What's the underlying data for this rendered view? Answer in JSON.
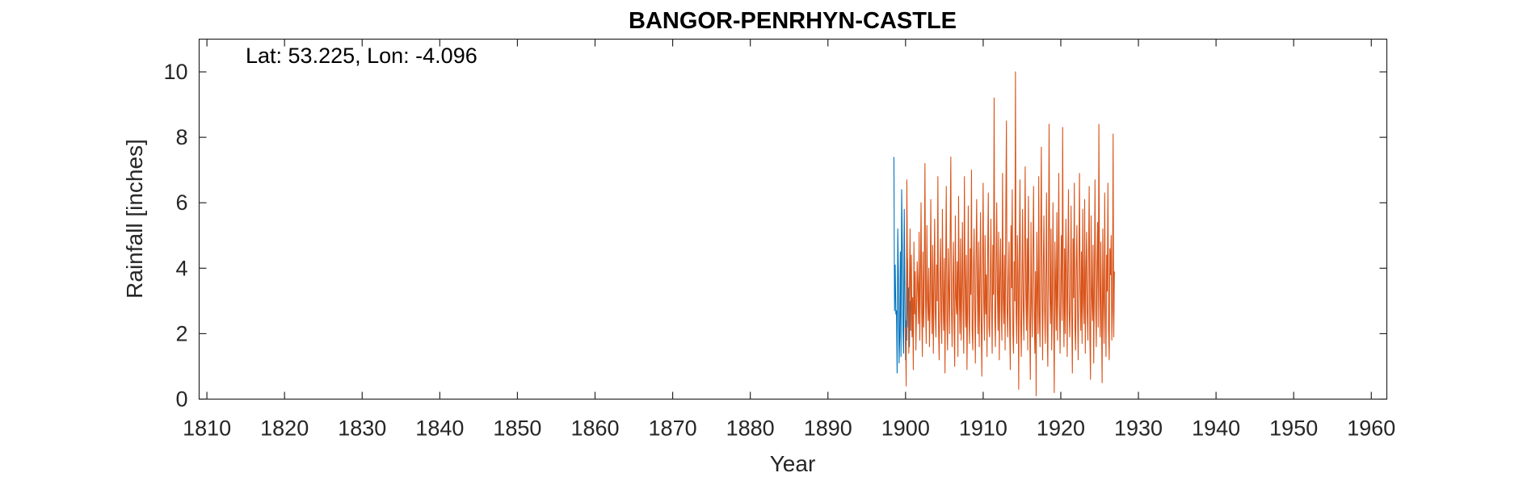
{
  "chart_data": {
    "type": "line",
    "title": "BANGOR-PENRHYN-CASTLE",
    "annotation": "Lat: 53.225, Lon: -4.096",
    "xlabel": "Year",
    "ylabel": "Rainfall [inches]",
    "xlim": [
      1809,
      1962
    ],
    "ylim": [
      0,
      11
    ],
    "xticks": [
      1810,
      1820,
      1830,
      1840,
      1850,
      1860,
      1870,
      1880,
      1890,
      1900,
      1910,
      1920,
      1930,
      1940,
      1950,
      1960
    ],
    "yticks": [
      0,
      2,
      4,
      6,
      8,
      10
    ],
    "grid": false,
    "legend": "none",
    "series": [
      {
        "color": "#0072BD",
        "x_start": 1898.5,
        "x_step": 0.0833,
        "values": [
          7.4,
          2.7,
          4.1,
          2.6,
          2.7,
          0.8,
          5.2,
          3.8,
          1.1,
          1.9,
          4.5,
          1.3,
          6.4,
          4.7,
          2.1,
          1.4,
          5.8,
          3.2,
          1.2,
          2.4,
          1.8,
          4.3,
          2.2,
          3.4,
          1.6,
          3.0
        ]
      },
      {
        "color": "#D95319",
        "x_start": 1900.0,
        "x_step": 0.0833,
        "values": [
          2.2,
          0.4,
          6.7,
          4.1,
          2.8,
          1.4,
          3.5,
          5.2,
          2.1,
          4.4,
          1.9,
          3.1,
          0.9,
          4.8,
          2.6,
          3.9,
          1.5,
          2.7,
          4.2,
          3.4,
          2.3,
          5.1,
          1.8,
          3.6,
          6.0,
          2.7,
          1.3,
          4.5,
          2.2,
          3.8,
          7.2,
          2.9,
          1.7,
          5.3,
          3.1,
          2.4,
          4.0,
          1.6,
          2.8,
          6.1,
          3.3,
          2.0,
          4.7,
          1.4,
          3.5,
          5.5,
          2.6,
          1.9,
          4.1,
          3.0,
          6.8,
          2.2,
          1.2,
          3.7,
          4.9,
          2.5,
          1.7,
          5.8,
          3.2,
          2.1,
          4.3,
          0.8,
          3.9,
          6.5,
          2.4,
          1.5,
          4.6,
          3.4,
          2.0,
          5.0,
          7.4,
          2.8,
          1.6,
          3.6,
          4.8,
          2.3,
          1.0,
          5.6,
          3.1,
          2.6,
          4.2,
          1.3,
          6.2,
          3.5,
          2.0,
          4.9,
          1.8,
          3.3,
          5.4,
          2.7,
          1.4,
          6.8,
          3.8,
          2.2,
          4.4,
          0.9,
          3.0,
          5.9,
          2.5,
          1.7,
          4.6,
          3.2,
          7.0,
          2.1,
          1.5,
          3.9,
          5.2,
          2.8,
          1.1,
          4.3,
          6.1,
          3.4,
          2.0,
          4.8,
          1.6,
          3.6,
          5.7,
          2.4,
          0.7,
          4.1,
          6.6,
          3.0,
          1.8,
          5.0,
          2.6,
          3.8,
          1.3,
          4.5,
          6.3,
          2.2,
          1.9,
          3.5,
          5.5,
          2.9,
          1.4,
          4.7,
          3.2,
          9.2,
          2.5,
          1.6,
          4.0,
          6.0,
          3.3,
          2.1,
          5.1,
          1.2,
          3.7,
          4.9,
          2.7,
          1.8,
          6.9,
          3.1,
          2.3,
          4.4,
          1.5,
          5.6,
          8.5,
          2.8,
          1.9,
          3.6,
          4.8,
          2.2,
          0.9,
          5.3,
          3.4,
          6.4,
          2.0,
          1.4,
          4.2,
          3.0,
          10.0,
          2.6,
          1.7,
          5.0,
          3.8,
          0.3,
          4.6,
          6.7,
          2.4,
          1.3,
          3.5,
          5.8,
          2.9,
          1.8,
          4.3,
          7.1,
          3.2,
          2.1,
          4.9,
          1.5,
          6.2,
          3.6,
          2.3,
          0.6,
          5.4,
          3.0,
          1.9,
          4.5,
          6.5,
          2.7,
          1.4,
          3.9,
          0.1,
          5.1,
          3.3,
          2.0,
          6.8,
          2.5,
          1.6,
          4.7,
          7.7,
          3.1,
          1.2,
          4.0,
          5.6,
          2.8,
          1.7,
          3.7,
          6.3,
          2.2,
          1.0,
          4.4,
          8.4,
          3.4,
          2.3,
          5.2,
          1.5,
          3.0,
          6.0,
          2.6,
          0.2,
          4.8,
          3.5,
          2.1,
          5.7,
          1.8,
          4.1,
          6.9,
          2.9,
          1.4,
          3.6,
          5.0,
          2.4,
          8.3,
          3.2,
          1.6,
          4.6,
          2.0,
          5.5,
          3.8,
          1.3,
          4.2,
          6.4,
          2.7,
          1.9,
          3.3,
          5.9,
          2.5,
          0.8,
          4.9,
          3.1,
          6.6,
          2.2,
          1.5,
          4.0,
          5.3,
          2.8,
          1.2,
          3.7,
          6.9,
          3.4,
          2.1,
          4.5,
          1.7,
          5.8,
          3.0,
          2.3,
          6.1,
          1.4,
          3.9,
          5.1,
          2.6,
          1.8,
          4.3,
          6.5,
          2.0,
          0.6,
          5.6,
          3.2,
          2.4,
          4.7,
          1.1,
          3.5,
          6.7,
          2.9,
          1.6,
          4.1,
          5.4,
          2.2,
          8.4,
          3.6,
          1.9,
          4.8,
          2.5,
          0.5,
          5.2,
          3.0,
          1.7,
          6.3,
          2.8,
          1.3,
          4.4,
          3.3,
          6.6,
          2.1,
          1.2,
          4.6,
          3.8,
          5.0,
          1.8,
          2.7,
          8.1,
          1.9,
          3.9
        ]
      }
    ]
  }
}
